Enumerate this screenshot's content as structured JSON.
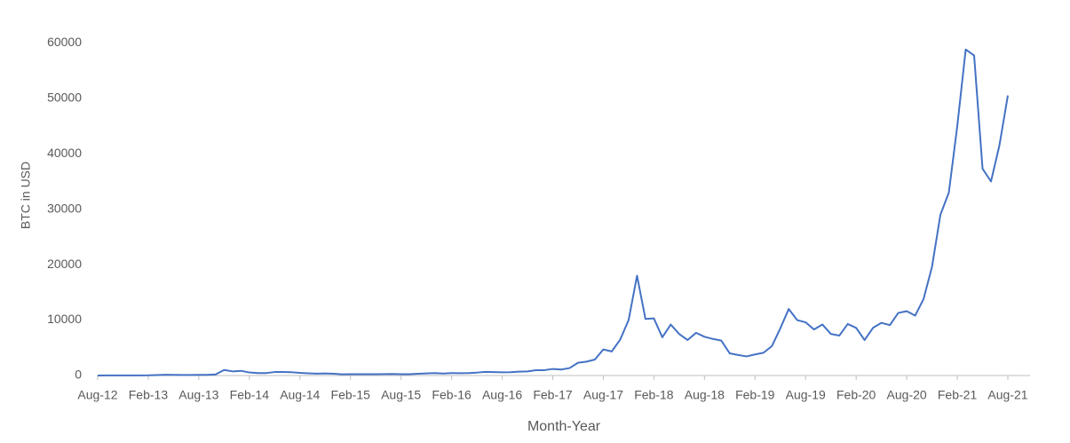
{
  "chart_data": {
    "type": "line",
    "x_label": "Month-Year",
    "y_label": "BTC in USD",
    "categories": [
      "Aug-12",
      null,
      null,
      null,
      null,
      null,
      "Feb-13",
      null,
      null,
      null,
      null,
      null,
      "Aug-13",
      null,
      null,
      null,
      null,
      null,
      "Feb-14",
      null,
      null,
      null,
      null,
      null,
      "Aug-14",
      null,
      null,
      null,
      null,
      null,
      "Feb-15",
      null,
      null,
      null,
      null,
      null,
      "Aug-15",
      null,
      null,
      null,
      null,
      null,
      "Feb-16",
      null,
      null,
      null,
      null,
      null,
      "Aug-16",
      null,
      null,
      null,
      null,
      null,
      "Feb-17",
      null,
      null,
      null,
      null,
      null,
      "Aug-17",
      null,
      null,
      null,
      null,
      null,
      "Feb-18",
      null,
      null,
      null,
      null,
      null,
      "Aug-18",
      null,
      null,
      null,
      null,
      null,
      "Feb-19",
      null,
      null,
      null,
      null,
      null,
      "Aug-19",
      null,
      null,
      null,
      null,
      null,
      "Feb-20",
      null,
      null,
      null,
      null,
      null,
      "Aug-20",
      null,
      null,
      null,
      null,
      null,
      "Feb-21",
      null,
      null,
      null,
      null,
      null,
      "Aug-21"
    ],
    "series": [
      {
        "name": "BTC",
        "color": "#4472c4",
        "values": [
          10,
          12,
          11,
          12,
          13,
          20,
          33,
          90,
          140,
          130,
          100,
          100,
          130,
          130,
          200,
          1000,
          750,
          850,
          550,
          450,
          450,
          630,
          640,
          590,
          480,
          390,
          340,
          380,
          320,
          220,
          250,
          245,
          235,
          230,
          260,
          285,
          230,
          236,
          315,
          380,
          430,
          370,
          440,
          415,
          450,
          530,
          670,
          625,
          575,
          610,
          700,
          740,
          960,
          970,
          1190,
          1080,
          1350,
          2300,
          2500,
          2880,
          4700,
          4340,
          6470,
          10000,
          18000,
          10200,
          10300,
          6900,
          9200,
          7500,
          6400,
          7700,
          7000,
          6600,
          6300,
          4000,
          3700,
          3450,
          3800,
          4100,
          5300,
          8500,
          12000,
          10000,
          9600,
          8300,
          9200,
          7500,
          7200,
          9300,
          8600,
          6400,
          8600,
          9500,
          9100,
          11300,
          11600,
          10800,
          13800,
          19600,
          29000,
          33000,
          45000,
          58800,
          57700,
          37300,
          35000,
          41500,
          50500
        ]
      }
    ],
    "ylim": [
      0,
      65000
    ],
    "yticks": [
      0,
      10000,
      20000,
      30000,
      40000,
      50000,
      60000
    ],
    "grid": false
  }
}
